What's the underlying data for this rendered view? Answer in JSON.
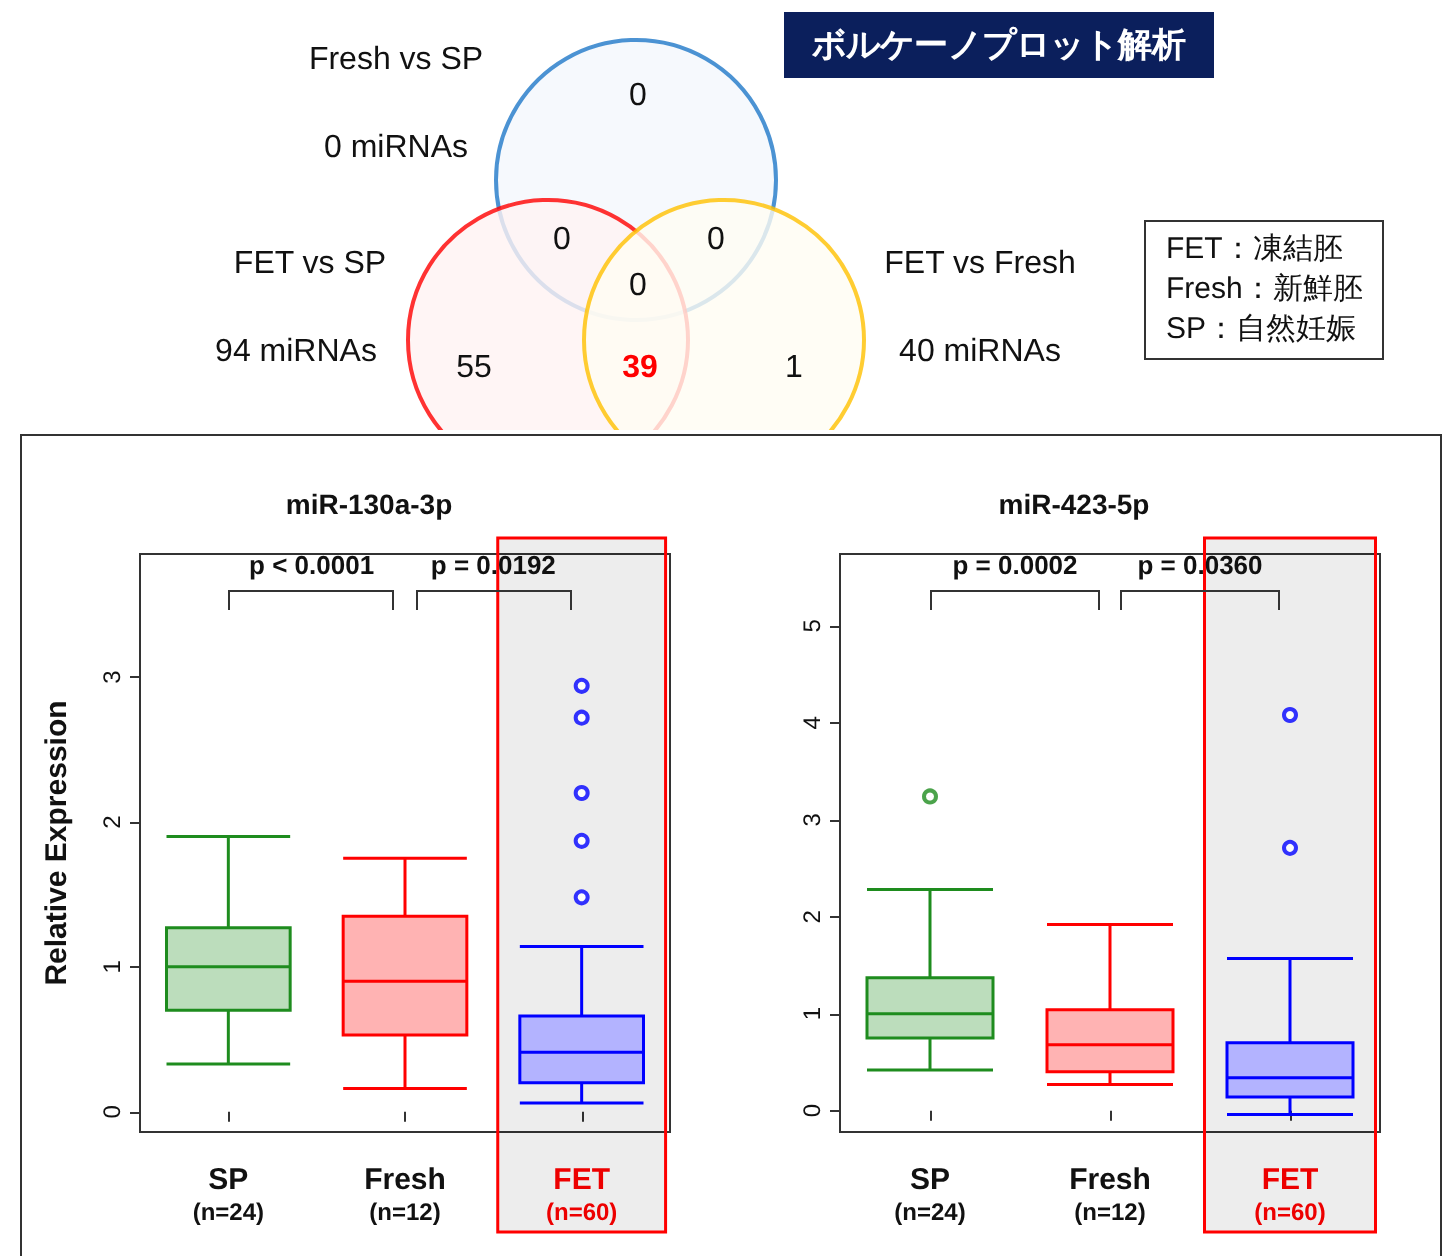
{
  "chart_data": [
    {
      "type": "other",
      "title": "ボルケーノプロット解析",
      "categories": [
        "Fresh vs SP",
        "FET vs SP",
        "FET vs Fresh"
      ],
      "annotations": [
        "0 miRNAs",
        "94 miRNAs",
        "40 miRNAs",
        "0",
        "0",
        "0",
        "0",
        "55",
        "39",
        "1"
      ],
      "colors": [
        "#1f78c8",
        "#ff0000",
        "#ffc000"
      ]
    },
    {
      "type": "other",
      "annotations": [
        "FET：凍結胚",
        "Fresh：新鮮胚",
        "SP：自然妊娠"
      ]
    },
    {
      "type": "box",
      "title": "miR-130a-3p",
      "ylabel": "Relative Expression",
      "categories": [
        "SP\n(n=24)",
        "Fresh\n(n=12)",
        "FET\n(n=60)"
      ],
      "colors": [
        "#1e8c1e",
        "#ff0000",
        "#0000ff"
      ],
      "boxes": [
        {
          "low": 0.33,
          "q1": 0.7,
          "median": 1.0,
          "q3": 1.27,
          "high": 1.9
        },
        {
          "low": 0.16,
          "q1": 0.53,
          "median": 0.9,
          "q3": 1.35,
          "high": 1.75
        },
        {
          "low": 0.06,
          "q1": 0.2,
          "median": 0.41,
          "q3": 0.66,
          "high": 1.14,
          "outliers": [
            2.94,
            2.72,
            2.2,
            1.87,
            1.48
          ]
        }
      ],
      "ylim": [
        -0.14,
        3.85
      ],
      "yticks": [
        0,
        1,
        2,
        3
      ],
      "annotations": [
        "p < 0.0001",
        "p = 0.0192"
      ],
      "bands": [
        {
          "axis": "x",
          "from": "FET\n(n=60)",
          "to": "FET\n(n=60)",
          "color": "#ff0000"
        }
      ]
    },
    {
      "type": "box",
      "title": "miR-423-5p",
      "categories": [
        "SP\n(n=24)",
        "Fresh\n(n=12)",
        "FET\n(n=60)"
      ],
      "colors": [
        "#1e8c1e",
        "#ff0000",
        "#0000ff"
      ],
      "boxes": [
        {
          "low": 0.42,
          "q1": 0.75,
          "median": 1.0,
          "q3": 1.37,
          "high": 2.28,
          "outliers": [
            3.24
          ]
        },
        {
          "low": 0.27,
          "q1": 0.4,
          "median": 0.68,
          "q3": 1.04,
          "high": 1.92
        },
        {
          "low": -0.04,
          "q1": 0.14,
          "median": 0.34,
          "q3": 0.7,
          "high": 1.57,
          "outliers": [
            4.08,
            2.71
          ]
        }
      ],
      "ylim": [
        -0.22,
        5.74
      ],
      "yticks": [
        0,
        1,
        2,
        3,
        4,
        5
      ],
      "annotations": [
        "p = 0.0002",
        "p = 0.0360"
      ],
      "bands": [
        {
          "axis": "x",
          "from": "FET\n(n=60)",
          "to": "FET\n(n=60)",
          "color": "#ff0000"
        }
      ]
    }
  ]
}
